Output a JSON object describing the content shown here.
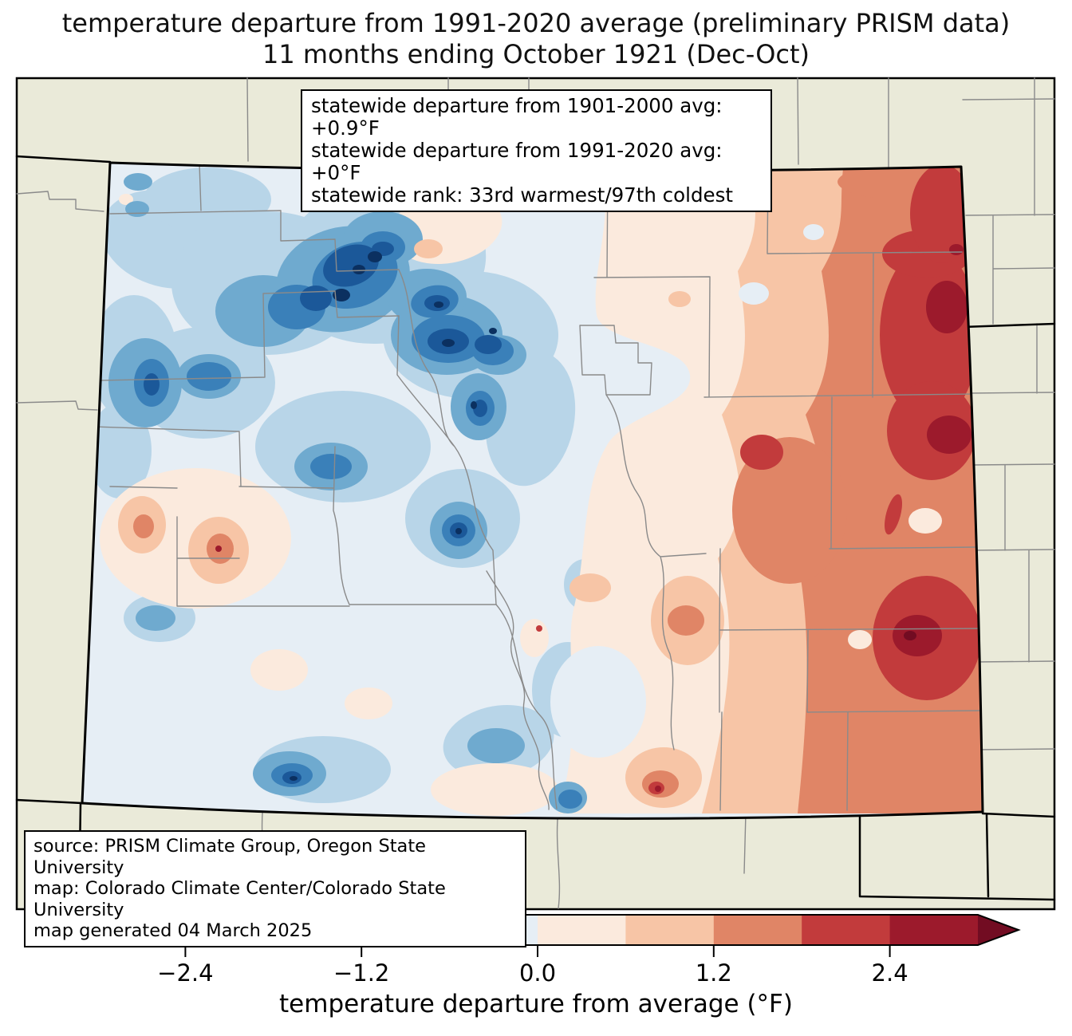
{
  "title": {
    "line1": "temperature departure from 1991-2020 average (preliminary PRISM data)",
    "line2": "11 months ending October 1921 (Dec-Oct)"
  },
  "stats_box": {
    "lines": [
      "statewide departure from 1901-2000 avg: +0.9°F",
      "statewide departure from 1991-2020 avg: +0°F",
      "statewide rank: 33rd warmest/97th coldest"
    ]
  },
  "source_box": {
    "lines": [
      "source: PRISM Climate Group, Oregon State University",
      "map: Colorado Climate Center/Colorado State University",
      "map generated 04 March 2025"
    ]
  },
  "colorbar": {
    "label": "temperature departure from average (°F)",
    "ticks": [
      "−2.4",
      "−1.2",
      "0.0",
      "1.2",
      "2.4"
    ],
    "tick_values": [
      -2.4,
      -1.2,
      0.0,
      1.2,
      2.4
    ],
    "range": [
      -3,
      3
    ],
    "bins": 10,
    "under_color": "#0b3060",
    "over_color": "#720c22",
    "palette": [
      "#1b5899",
      "#3a80b9",
      "#6faacf",
      "#b8d5e8",
      "#e6eef5",
      "#fbeadd",
      "#f7c5a6",
      "#e08566",
      "#c23b3c",
      "#9c1a2c"
    ]
  },
  "map": {
    "region": "Colorado",
    "background_color": "#eaead9",
    "county_line_color": "#8a8a8a",
    "state_border_color": "#000000"
  }
}
